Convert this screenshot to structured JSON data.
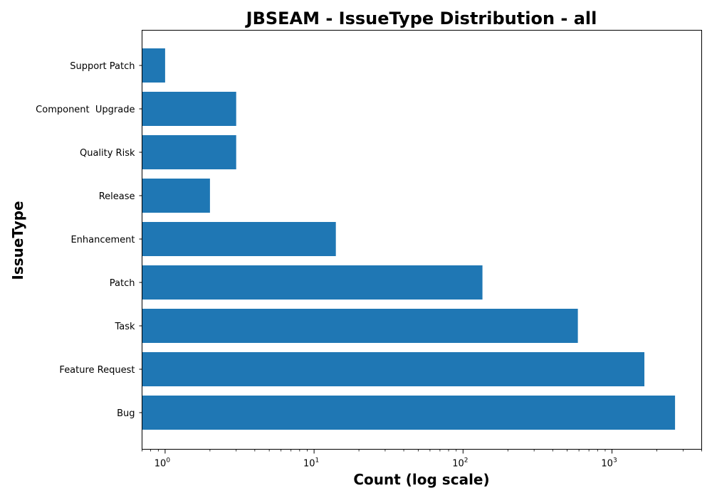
{
  "chart_data": {
    "type": "bar",
    "orientation": "horizontal",
    "title": "JBSEAM - IssueType Distribution - all",
    "xlabel": "Count (log scale)",
    "ylabel": "IssueType",
    "xscale": "log",
    "xlim": [
      0.7,
      4000
    ],
    "x_ticks": [
      {
        "value": 1,
        "base": "10",
        "exp": "0"
      },
      {
        "value": 10,
        "base": "10",
        "exp": "1"
      },
      {
        "value": 100,
        "base": "10",
        "exp": "2"
      },
      {
        "value": 1000,
        "base": "10",
        "exp": "3"
      }
    ],
    "categories": [
      "Bug",
      "Feature Request",
      "Task",
      "Patch",
      "Enhancement",
      "Release",
      "Quality Risk",
      "Component  Upgrade",
      "Support Patch"
    ],
    "values": [
      2650,
      1650,
      590,
      135,
      14,
      2,
      3,
      3,
      1
    ],
    "bar_color": "#1f77b4",
    "grid": false,
    "legend": "none"
  }
}
